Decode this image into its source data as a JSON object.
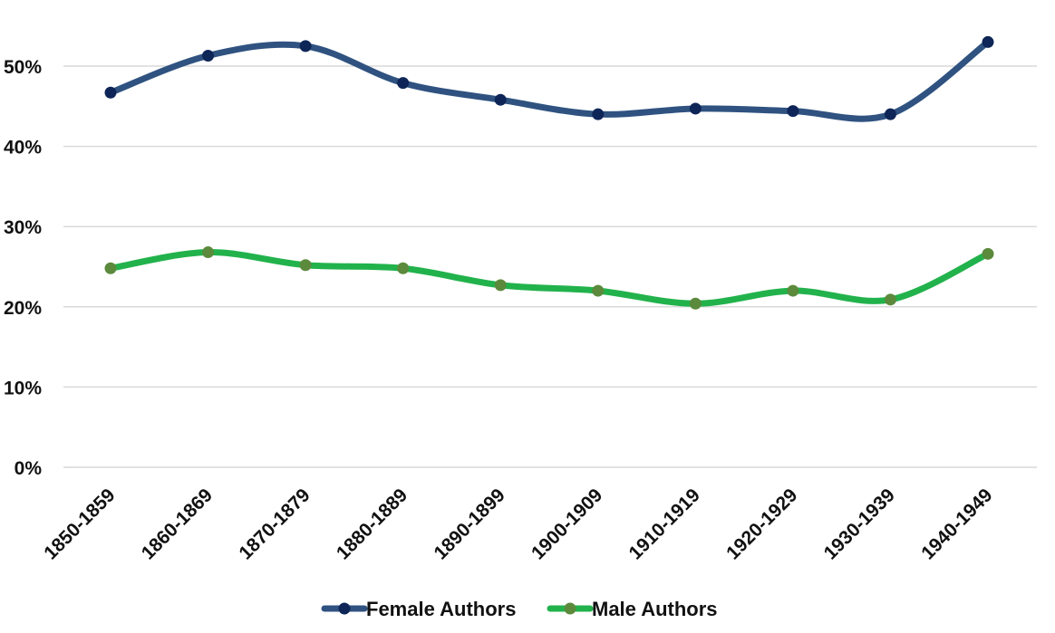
{
  "chart_data": {
    "type": "line",
    "categories": [
      "1850-1859",
      "1860-1869",
      "1870-1879",
      "1880-1889",
      "1890-1899",
      "1900-1909",
      "1910-1919",
      "1920-1929",
      "1930-1939",
      "1940-1949"
    ],
    "series": [
      {
        "name": "Female Authors",
        "values": [
          46.7,
          51.3,
          52.5,
          47.9,
          45.8,
          44.0,
          44.7,
          44.4,
          44.0,
          53.0
        ],
        "color": "#2f5280",
        "marker_color": "#0e2557"
      },
      {
        "name": "Male Authors",
        "values": [
          24.8,
          26.8,
          25.2,
          24.8,
          22.7,
          22.0,
          20.4,
          22.0,
          20.9,
          26.6
        ],
        "color": "#22b24c",
        "marker_color": "#5b8a3c"
      }
    ],
    "ylim": [
      0,
      50
    ],
    "yticks": [
      "0%",
      "10%",
      "20%",
      "30%",
      "40%",
      "50%"
    ],
    "grid": true,
    "legend": "bottom-center",
    "title": "",
    "xlabel": "",
    "ylabel": ""
  }
}
